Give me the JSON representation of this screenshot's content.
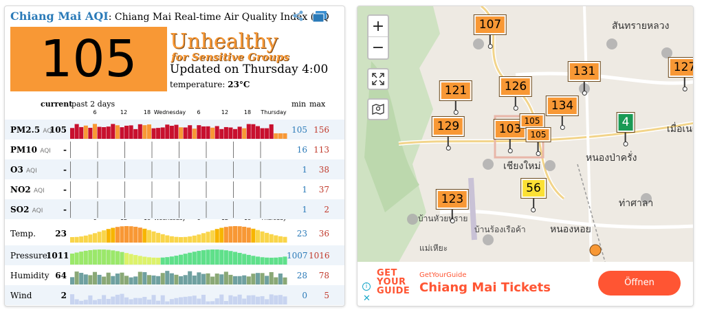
{
  "widget": {
    "title_city": "Chiang Mai AQI",
    "title_rest": ": Chiang Mai Real-time Air Quality Index (AQ",
    "aqi_value": "105",
    "level_main": "Unhealthy",
    "level_sub": "for Sensitive Groups",
    "updated": "Updated on Thursday 4:00",
    "temperature_label": "temperature: ",
    "temperature_value": "23°C",
    "colors": {
      "aqi_orange": "#f89835",
      "min_blue": "#2a7ab8",
      "max_red": "#c0392b"
    }
  },
  "table": {
    "header_current": "current",
    "header_past": "past 2 days",
    "header_min": "min",
    "header_max": "max",
    "ticks": [
      "6",
      "12",
      "18",
      "Wednesday",
      "6",
      "12",
      "18",
      "Thursday"
    ],
    "rows": [
      {
        "label": "PM2.5",
        "tag": "AQI",
        "current": "105",
        "min": "105",
        "max": "156"
      },
      {
        "label": "PM10",
        "tag": "AQI",
        "current": "-",
        "min": "16",
        "max": "113"
      },
      {
        "label": "O3",
        "tag": "AQI",
        "current": "-",
        "min": "1",
        "max": "38"
      },
      {
        "label": "NO2",
        "tag": "AQI",
        "current": "-",
        "min": "1",
        "max": "37"
      },
      {
        "label": "SO2",
        "tag": "AQI",
        "current": "-",
        "min": "1",
        "max": "2"
      },
      {
        "label": "Temp.",
        "tag": "",
        "current": "23",
        "min": "23",
        "max": "36"
      },
      {
        "label": "Pressure",
        "tag": "",
        "current": "1011",
        "min": "1007",
        "max": "1016"
      },
      {
        "label": "Humidity",
        "tag": "",
        "current": "64",
        "min": "28",
        "max": "78"
      },
      {
        "label": "Wind",
        "tag": "",
        "current": "2",
        "min": "0",
        "max": "5"
      }
    ]
  },
  "map": {
    "zoom_in": "+",
    "zoom_out": "−",
    "markers": [
      "107",
      "121",
      "126",
      "131",
      "127",
      "129",
      "134",
      "103",
      "105",
      "105",
      "4",
      "56",
      "123"
    ],
    "place_labels": [
      "สันทรายหลวง",
      "เชียงใหม่",
      "หนองป่าครั่ง",
      "ท่าศาลา",
      "หนองหอย",
      "แม่เหียะ",
      "บ้านร้องเรือค้า",
      "บ้านหัวยทราย",
      "เมื่อเนตร"
    ]
  },
  "ad": {
    "logo": "GET YOUR GUIDE",
    "source": "GetYourGuide",
    "headline": "Chiang Mai Tickets",
    "cta": "Öffnen"
  }
}
